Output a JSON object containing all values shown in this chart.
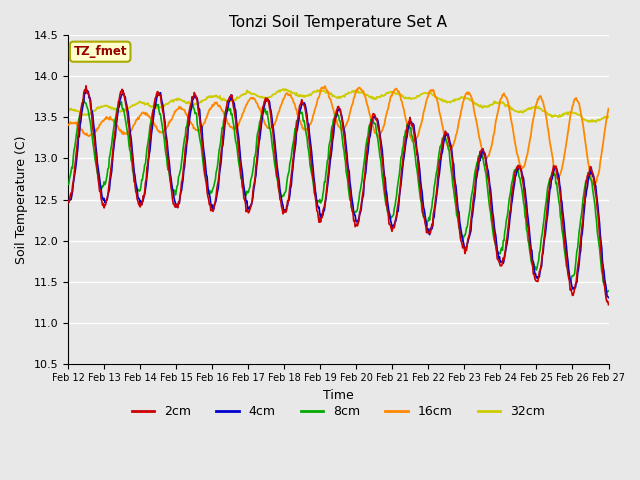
{
  "title": "Tonzi Soil Temperature Set A",
  "xlabel": "Time",
  "ylabel": "Soil Temperature (C)",
  "ylim": [
    10.5,
    14.5
  ],
  "annotation": "TZ_fmet",
  "bg_color": "#e8e8e8",
  "line_colors": {
    "2cm": "#cc0000",
    "4cm": "#0000cc",
    "8cm": "#00aa00",
    "16cm": "#ff8800",
    "32cm": "#cccc00"
  },
  "x_tick_labels": [
    "Feb 12",
    "Feb 13",
    "Feb 14",
    "Feb 15",
    "Feb 16",
    "Feb 17",
    "Feb 18",
    "Feb 19",
    "Feb 20",
    "Feb 21",
    "Feb 22",
    "Feb 23",
    "Feb 24",
    "Feb 25",
    "Feb 26",
    "Feb 27"
  ],
  "yticks": [
    10.5,
    11.0,
    11.5,
    12.0,
    12.5,
    13.0,
    13.5,
    14.0,
    14.5
  ],
  "n_points": 720
}
